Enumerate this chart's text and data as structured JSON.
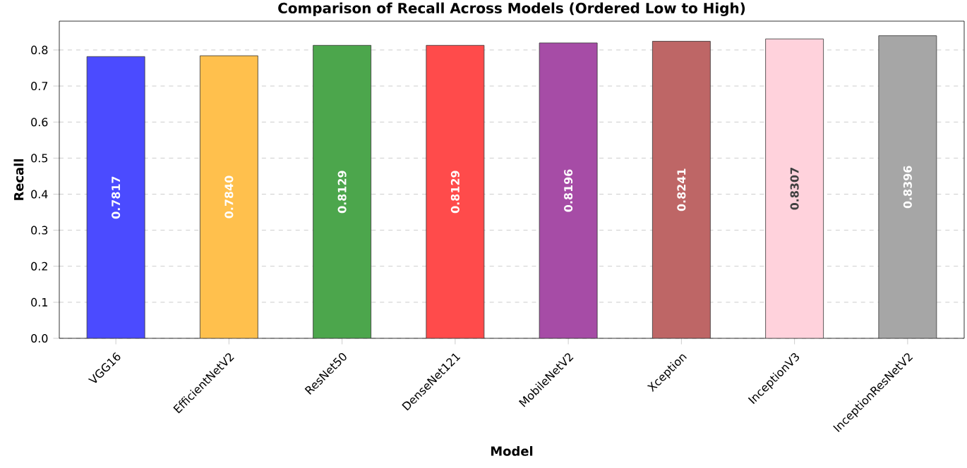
{
  "chart_data": {
    "type": "bar",
    "title": "Comparison of Recall Across Models (Ordered Low to High)",
    "xlabel": "Model",
    "ylabel": "Recall",
    "categories": [
      "VGG16",
      "EfficientNetV2",
      "ResNet50",
      "DenseNet121",
      "MobileNetV2",
      "Xception",
      "InceptionV3",
      "InceptionResNetV2"
    ],
    "values": [
      0.7817,
      0.784,
      0.8129,
      0.8129,
      0.8196,
      0.8241,
      0.8307,
      0.8396
    ],
    "value_labels": [
      "0.7817",
      "0.7840",
      "0.8129",
      "0.8129",
      "0.8196",
      "0.8241",
      "0.8307",
      "0.8396"
    ],
    "colors": [
      "#4b4bff",
      "#ffc04d",
      "#4ca64c",
      "#ff4b4b",
      "#a64ca6",
      "#be6666",
      "#ffd2dc",
      "#a6a6a6"
    ],
    "ylim": [
      0,
      0.88
    ],
    "yticks": [
      {
        "value": 0,
        "label": "0.0"
      },
      {
        "value": 0.1,
        "label": "0.1"
      },
      {
        "value": 0.2,
        "label": "0.2"
      },
      {
        "value": 0.3,
        "label": "0.3"
      },
      {
        "value": 0.4,
        "label": "0.4"
      },
      {
        "value": 0.5,
        "label": "0.5"
      },
      {
        "value": 0.6,
        "label": "0.6"
      },
      {
        "value": 0.7,
        "label": "0.7"
      },
      {
        "value": 0.8,
        "label": "0.8"
      }
    ],
    "grid": "y"
  }
}
